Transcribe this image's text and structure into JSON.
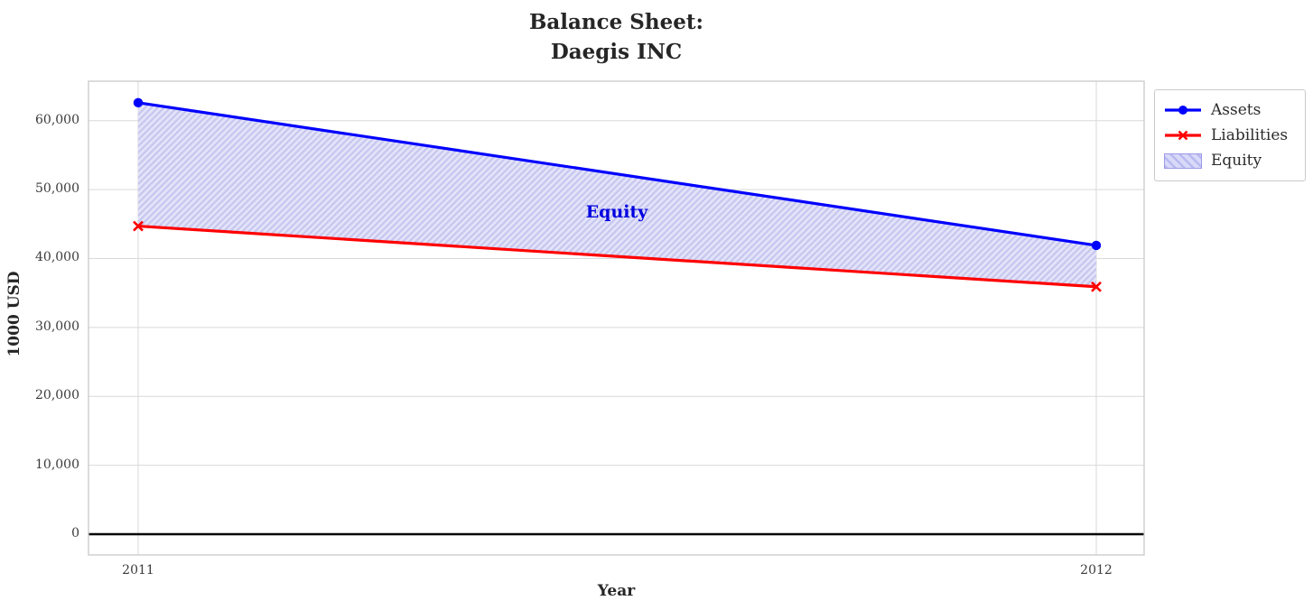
{
  "chart_data": {
    "type": "line",
    "title": "Balance Sheet:\nDaegis INC",
    "title_lines": [
      "Balance Sheet:",
      "Daegis INC"
    ],
    "xlabel": "Year",
    "ylabel": "1000 USD",
    "x": [
      2011,
      2012
    ],
    "xtick_labels": [
      "2011",
      "2012"
    ],
    "series": [
      {
        "name": "Assets",
        "color": "#0000ff",
        "marker": "circle",
        "values": [
          62600,
          41900
        ]
      },
      {
        "name": "Liabilities",
        "color": "#ff0000",
        "marker": "x",
        "values": [
          44700,
          35900
        ]
      }
    ],
    "band": {
      "name": "Equity",
      "upper_series": "Assets",
      "lower_series": "Liabilities",
      "values": [
        17900,
        6000
      ],
      "annotation": "Equity",
      "annotation_color": "#0000e0",
      "fill_color": "#e3e3f9",
      "hatch_color": "#c6c6ef"
    },
    "yticks": [
      0,
      10000,
      20000,
      30000,
      40000,
      50000,
      60000
    ],
    "ytick_labels": [
      "0",
      "10,000",
      "20,000",
      "30,000",
      "40,000",
      "50,000",
      "60,000"
    ],
    "ylim": [
      -3000,
      65700
    ],
    "grid": true,
    "zero_line": true,
    "legend": {
      "position": "outside upper right",
      "entries": [
        "Assets",
        "Liabilities",
        "Equity"
      ]
    }
  },
  "colors": {
    "grid": "#d9d9d9",
    "frame": "#c8c8c8",
    "zero_line": "#000000",
    "text": "#262626"
  }
}
